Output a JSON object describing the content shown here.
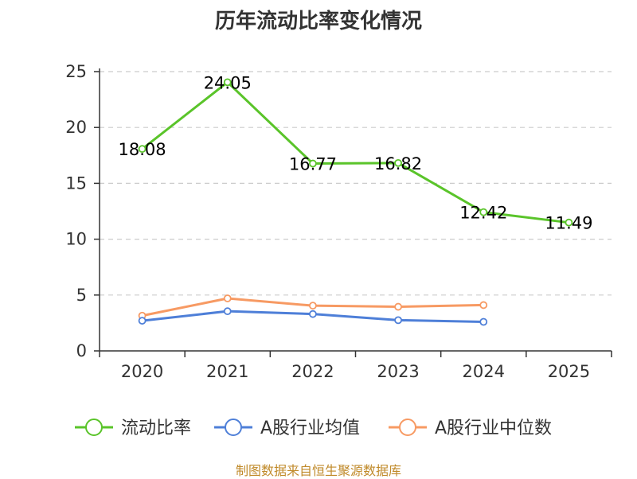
{
  "chart_data": {
    "type": "line",
    "title": "历年流动比率变化情况",
    "categories": [
      "2020",
      "2021",
      "2022",
      "2023",
      "2024",
      "2025"
    ],
    "ylim": [
      0,
      25
    ],
    "yticks": [
      0,
      5,
      10,
      15,
      20,
      25
    ],
    "grid": true,
    "legend_position": "bottom",
    "series": [
      {
        "name": "流动比率",
        "color": "#5ac42a",
        "values": [
          18.08,
          24.05,
          16.77,
          16.82,
          12.42,
          11.49
        ],
        "labels": [
          "18.08",
          "24.05",
          "16.77",
          "16.82",
          "12.42",
          "11.49"
        ]
      },
      {
        "name": "A股行业均值",
        "color": "#4e7fd8",
        "values": [
          2.7,
          3.55,
          3.3,
          2.75,
          2.6,
          null
        ]
      },
      {
        "name": "A股行业中位数",
        "color": "#f79a63",
        "values": [
          3.15,
          4.7,
          4.05,
          3.95,
          4.1,
          null
        ]
      }
    ]
  },
  "source": "制图数据来自恒生聚源数据库"
}
